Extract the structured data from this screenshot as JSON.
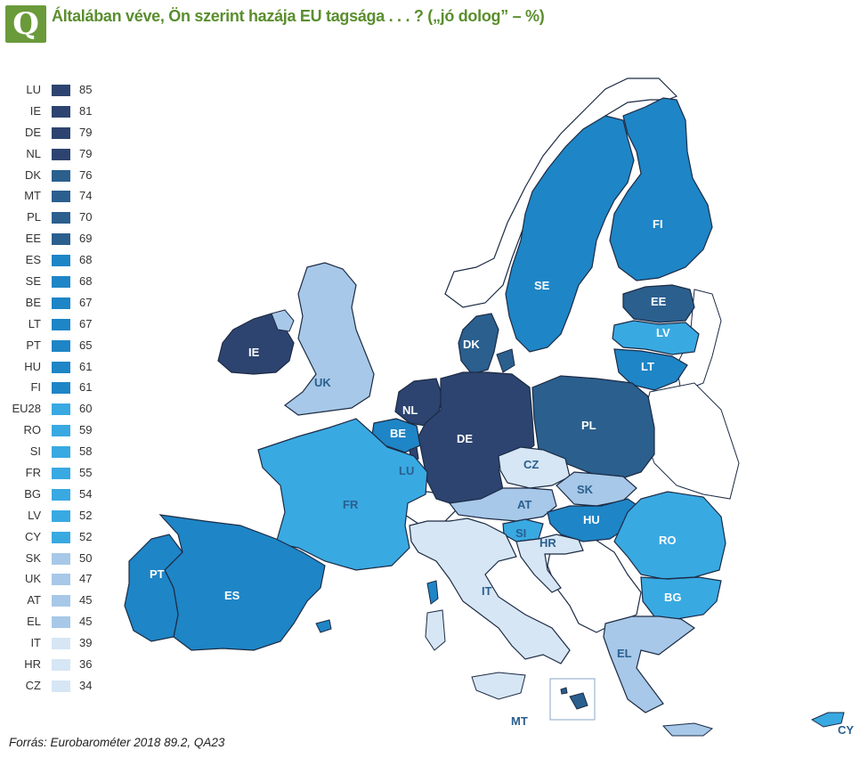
{
  "title": "Általában véve, Ön szerint hazája EU tagsága . . . ? („jó dolog” – %)",
  "logo_letter": "Q",
  "source": "Forrás: Eurobarométer 2018 89.2, QA23",
  "colors": {
    "c1": "#2d4470",
    "c2": "#2a5f8e",
    "c3": "#1e85c6",
    "c4": "#39a9e2",
    "c5": "#a7c8e8",
    "c6": "#d6e6f4",
    "outside": "#ffffff",
    "border": "#1c2b44",
    "title_green": "#5a8e2e",
    "label_dark": "#2a5f8e"
  },
  "legend": [
    {
      "code": "LU",
      "value": 85,
      "color": "#2d4470"
    },
    {
      "code": "IE",
      "value": 81,
      "color": "#2d4470"
    },
    {
      "code": "DE",
      "value": 79,
      "color": "#2d4470"
    },
    {
      "code": "NL",
      "value": 79,
      "color": "#2d4470"
    },
    {
      "code": "DK",
      "value": 76,
      "color": "#2a5f8e"
    },
    {
      "code": "MT",
      "value": 74,
      "color": "#2a5f8e"
    },
    {
      "code": "PL",
      "value": 70,
      "color": "#2a5f8e"
    },
    {
      "code": "EE",
      "value": 69,
      "color": "#2a5f8e"
    },
    {
      "code": "ES",
      "value": 68,
      "color": "#1e85c6"
    },
    {
      "code": "SE",
      "value": 68,
      "color": "#1e85c6"
    },
    {
      "code": "BE",
      "value": 67,
      "color": "#1e85c6"
    },
    {
      "code": "LT",
      "value": 67,
      "color": "#1e85c6"
    },
    {
      "code": "PT",
      "value": 65,
      "color": "#1e85c6"
    },
    {
      "code": "HU",
      "value": 61,
      "color": "#1e85c6"
    },
    {
      "code": "FI",
      "value": 61,
      "color": "#1e85c6"
    },
    {
      "code": "EU28",
      "value": 60,
      "color": "#39a9e2"
    },
    {
      "code": "RO",
      "value": 59,
      "color": "#39a9e2"
    },
    {
      "code": "SI",
      "value": 58,
      "color": "#39a9e2"
    },
    {
      "code": "FR",
      "value": 55,
      "color": "#39a9e2"
    },
    {
      "code": "BG",
      "value": 54,
      "color": "#39a9e2"
    },
    {
      "code": "LV",
      "value": 52,
      "color": "#39a9e2"
    },
    {
      "code": "CY",
      "value": 52,
      "color": "#39a9e2"
    },
    {
      "code": "SK",
      "value": 50,
      "color": "#a7c8e8"
    },
    {
      "code": "UK",
      "value": 47,
      "color": "#a7c8e8"
    },
    {
      "code": "AT",
      "value": 45,
      "color": "#a7c8e8"
    },
    {
      "code": "EL",
      "value": 45,
      "color": "#a7c8e8"
    },
    {
      "code": "IT",
      "value": 39,
      "color": "#d6e6f4"
    },
    {
      "code": "HR",
      "value": 36,
      "color": "#d6e6f4"
    },
    {
      "code": "CZ",
      "value": 34,
      "color": "#d6e6f4"
    }
  ],
  "map_labels": {
    "FI": "FI",
    "SE": "SE",
    "EE": "EE",
    "LV": "LV",
    "LT": "LT",
    "DK": "DK",
    "IE": "IE",
    "UK": "UK",
    "NL": "NL",
    "BE": "BE",
    "LU": "LU",
    "DE": "DE",
    "PL": "PL",
    "CZ": "CZ",
    "SK": "SK",
    "AT": "AT",
    "HU": "HU",
    "SI": "SI",
    "HR": "HR",
    "RO": "RO",
    "BG": "BG",
    "FR": "FR",
    "ES": "ES",
    "PT": "PT",
    "IT": "IT",
    "EL": "EL",
    "MT": "MT",
    "CY": "CY"
  }
}
